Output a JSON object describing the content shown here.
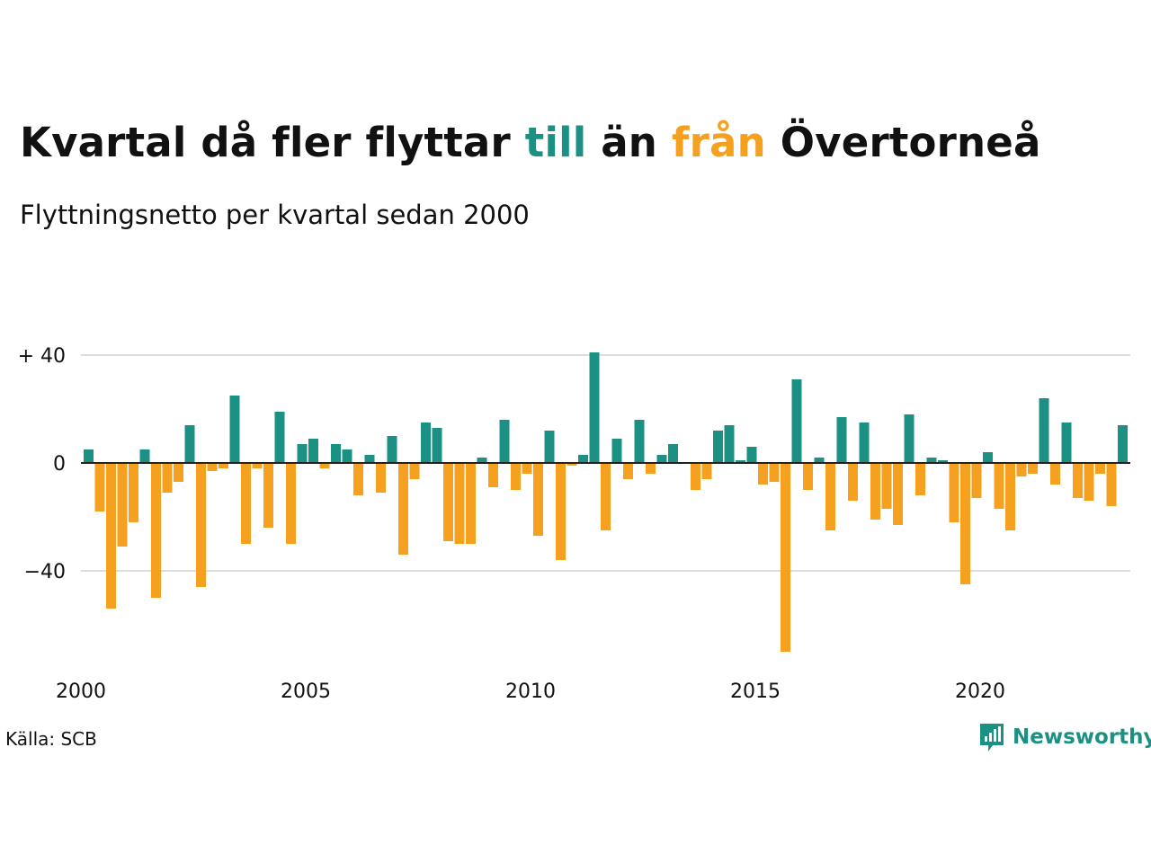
{
  "title": {
    "part1": "Kvartal då fler flyttar ",
    "till": "till",
    "part2": " än ",
    "fran": "från",
    "part3": " Övertorneå"
  },
  "subtitle": "Flyttningsnetto per kvartal sedan 2000",
  "source": "Källa: SCB",
  "brand": "Newsworthy",
  "colors": {
    "positive": "#1a9183",
    "negative": "#f5a01e",
    "grid": "#dddddd",
    "text": "#111111"
  },
  "chart_data": {
    "type": "bar",
    "title": "Kvartal då fler flyttar till än från Övertorneå",
    "subtitle": "Flyttningsnetto per kvartal sedan 2000",
    "x_ticks": [
      {
        "year": 2000,
        "label": "2000"
      },
      {
        "year": 2005,
        "label": "2005"
      },
      {
        "year": 2010,
        "label": "2010"
      },
      {
        "year": 2015,
        "label": "2015"
      },
      {
        "year": 2020,
        "label": "2020"
      }
    ],
    "y_ticks": [
      {
        "value": 40,
        "label": "+ 40"
      },
      {
        "value": 0,
        "label": "0"
      },
      {
        "value": -40,
        "label": "−40"
      }
    ],
    "ylim": [
      -70,
      41
    ],
    "start": "2000-Q1",
    "values": [
      5,
      -18,
      -54,
      -31,
      -22,
      5,
      -50,
      -11,
      -7,
      14,
      -46,
      -3,
      -2,
      25,
      -30,
      -2,
      -24,
      19,
      -30,
      7,
      9,
      -2,
      7,
      5,
      -12,
      3,
      -11,
      10,
      -34,
      -6,
      15,
      13,
      -29,
      -30,
      -30,
      2,
      -9,
      16,
      -10,
      -4,
      -27,
      12,
      -36,
      -1,
      3,
      41,
      -25,
      9,
      -6,
      16,
      -4,
      3,
      7,
      0,
      -10,
      -6,
      12,
      14,
      1,
      6,
      -8,
      -7,
      -70,
      31,
      -10,
      2,
      -25,
      17,
      -14,
      15,
      -21,
      -17,
      -23,
      18,
      -12,
      2,
      1,
      -22,
      -45,
      -13,
      4,
      -17,
      -25,
      -5,
      -4,
      24,
      -8,
      15,
      -13,
      -14,
      -4,
      -16,
      14
    ],
    "grid": true,
    "legend": "none"
  }
}
